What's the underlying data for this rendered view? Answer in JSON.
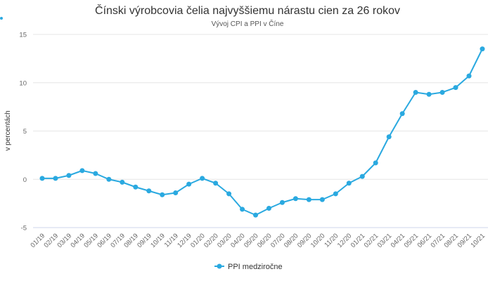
{
  "chart_data": {
    "type": "line",
    "title": "Čínski výrobcovia čelia najvyššiemu nárastu cien za 26 rokov",
    "subtitle": "Vývoj CPI a PPI v Číne",
    "xlabel": "",
    "ylabel": "v percentách",
    "ylim": [
      -5,
      15
    ],
    "yticks": [
      -5,
      0,
      5,
      10,
      15
    ],
    "grid": true,
    "legend_position": "bottom-center",
    "categories": [
      "01/19",
      "02/19",
      "03/19",
      "04/19",
      "05/19",
      "06/19",
      "07/19",
      "08/19",
      "09/19",
      "10/19",
      "11/19",
      "12/19",
      "01/20",
      "02/20",
      "03/20",
      "04/20",
      "05/20",
      "06/20",
      "07/20",
      "08/20",
      "09/20",
      "10/20",
      "11/20",
      "12/20",
      "01/21",
      "02/21",
      "03/21",
      "04/21",
      "05/21",
      "06/21",
      "07/21",
      "08/21",
      "09/21",
      "10/21"
    ],
    "series": [
      {
        "name": "PPI medziročne",
        "color": "#2aa9e0",
        "values": [
          0.1,
          0.1,
          0.4,
          0.9,
          0.6,
          0.0,
          -0.3,
          -0.8,
          -1.2,
          -1.6,
          -1.4,
          -0.5,
          0.1,
          -0.4,
          -1.5,
          -3.1,
          -3.7,
          -3.0,
          -2.4,
          -2.0,
          -2.1,
          -2.1,
          -1.5,
          -0.4,
          0.3,
          1.7,
          4.4,
          6.8,
          9.0,
          8.8,
          9.0,
          9.5,
          10.7,
          13.5
        ]
      }
    ]
  },
  "colors": {
    "accent": "#2aa9e0"
  }
}
